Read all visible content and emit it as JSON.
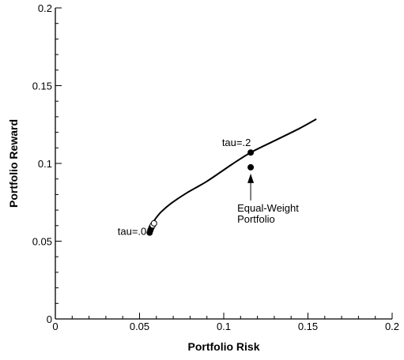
{
  "chart_data": {
    "type": "line",
    "xlabel": "Portfolio Risk",
    "ylabel": "Portfolio Reward",
    "xlim": [
      0,
      0.2
    ],
    "ylim": [
      0,
      0.2
    ],
    "xticks": [
      0,
      0.05,
      0.1,
      0.15,
      0.2
    ],
    "xtick_labels": [
      "0",
      "0.05",
      "0.1",
      "0.15",
      "0.2"
    ],
    "yticks": [
      0,
      0.05,
      0.1,
      0.15,
      0.2
    ],
    "ytick_labels": [
      "0",
      "0.05",
      "0.1",
      "0.15",
      "0.2"
    ],
    "grid": false,
    "series": [
      {
        "values": [
          {
            "x": 0.056,
            "y": 0.056
          },
          {
            "x": 0.0562,
            "y": 0.058
          },
          {
            "x": 0.0566,
            "y": 0.0595
          },
          {
            "x": 0.0575,
            "y": 0.061
          },
          {
            "x": 0.0595,
            "y": 0.0645
          },
          {
            "x": 0.063,
            "y": 0.069
          },
          {
            "x": 0.069,
            "y": 0.0745
          },
          {
            "x": 0.078,
            "y": 0.081
          },
          {
            "x": 0.09,
            "y": 0.0885
          },
          {
            "x": 0.105,
            "y": 0.0995
          },
          {
            "x": 0.116,
            "y": 0.107
          },
          {
            "x": 0.13,
            "y": 0.1145
          },
          {
            "x": 0.145,
            "y": 0.1225
          },
          {
            "x": 0.155,
            "y": 0.1285
          }
        ]
      }
    ],
    "points": [
      {
        "x": 0.056,
        "y": 0.0555,
        "filled": true
      },
      {
        "x": 0.0565,
        "y": 0.0572,
        "filled": true
      },
      {
        "x": 0.0571,
        "y": 0.0588,
        "filled": true
      },
      {
        "x": 0.0578,
        "y": 0.0602,
        "filled": false
      },
      {
        "x": 0.0586,
        "y": 0.0615,
        "filled": false
      },
      {
        "x": 0.116,
        "y": 0.107,
        "filled": true
      },
      {
        "x": 0.116,
        "y": 0.0975,
        "filled": true
      }
    ],
    "annotations": [
      {
        "text": "tau=.0",
        "x": 0.056,
        "y": 0.0565
      },
      {
        "text": "tau=.2",
        "x": 0.116,
        "y": 0.107
      },
      {
        "text": "Equal-Weight",
        "x": 0.116,
        "y": 0.0975
      },
      {
        "text": "Portfolio",
        "x": 0.116,
        "y": 0.0975
      }
    ]
  }
}
